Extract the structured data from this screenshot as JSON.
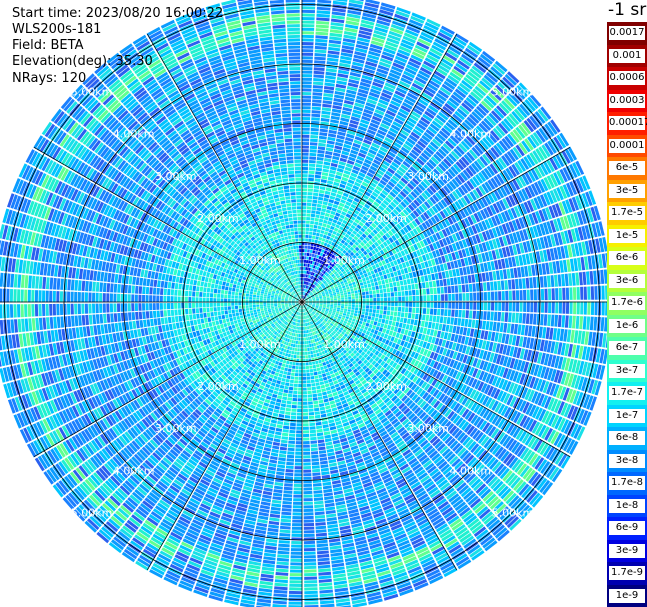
{
  "header": {
    "start_time": "Start time: 2023/08/20 16:00:22",
    "instrument": "WLS200s-181",
    "field": "Field: BETA",
    "elevation": "Elevation(deg): 35.30",
    "nrays": "NRays: 120"
  },
  "unit_label": "-1 sr",
  "range_rings": {
    "values_km": [
      1,
      2,
      3,
      4,
      5
    ],
    "label_suffix": "km"
  },
  "range_labels": [
    "1.00km",
    "2.00km",
    "3.00km",
    "4.00km",
    "5.00km"
  ],
  "scan": {
    "nrays": 120,
    "max_range_km": 5.2,
    "gate_spacing_km": 0.06
  },
  "colorbar": [
    {
      "label": "0.0017",
      "color": "#800000"
    },
    {
      "label": "0.001",
      "color": "#a00000"
    },
    {
      "label": "0.0006",
      "color": "#c80000"
    },
    {
      "label": "0.0003",
      "color": "#f00000"
    },
    {
      "label": "0.00017",
      "color": "#ff1e00"
    },
    {
      "label": "0.0001",
      "color": "#ff4a00"
    },
    {
      "label": "6e-5",
      "color": "#ff7800"
    },
    {
      "label": "3e-5",
      "color": "#ffa000"
    },
    {
      "label": "1.7e-5",
      "color": "#ffcc00"
    },
    {
      "label": "1e-5",
      "color": "#f6f000"
    },
    {
      "label": "6e-6",
      "color": "#d8ff18"
    },
    {
      "label": "3e-6",
      "color": "#b4ff3c"
    },
    {
      "label": "1.7e-6",
      "color": "#90ff62"
    },
    {
      "label": "1e-6",
      "color": "#70ff88"
    },
    {
      "label": "6e-7",
      "color": "#4effac"
    },
    {
      "label": "3e-7",
      "color": "#2effd0"
    },
    {
      "label": "1.7e-7",
      "color": "#12f0f0"
    },
    {
      "label": "1e-7",
      "color": "#00d4ff"
    },
    {
      "label": "6e-8",
      "color": "#00b0ff"
    },
    {
      "label": "3e-8",
      "color": "#008cff"
    },
    {
      "label": "1.7e-8",
      "color": "#0068ff"
    },
    {
      "label": "1e-8",
      "color": "#0044ff"
    },
    {
      "label": "6e-9",
      "color": "#0020ff"
    },
    {
      "label": "3e-9",
      "color": "#0000e0"
    },
    {
      "label": "1.7e-9",
      "color": "#0000b0"
    },
    {
      "label": "1e-9",
      "color": "#000080"
    }
  ]
}
